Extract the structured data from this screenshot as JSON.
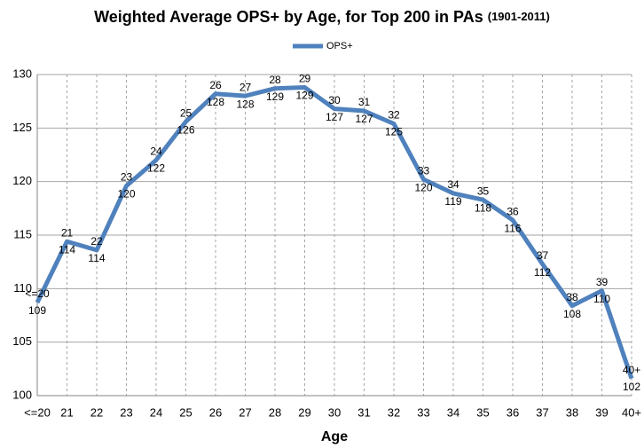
{
  "chart_data": {
    "type": "line",
    "title": "Weighted Average OPS+ by Age, for Top 200 in PAs",
    "subtitle": "(1901-2011)",
    "x_label": "Age",
    "categories": [
      "<=20",
      "21",
      "22",
      "23",
      "24",
      "25",
      "26",
      "27",
      "28",
      "29",
      "30",
      "31",
      "32",
      "33",
      "34",
      "35",
      "36",
      "37",
      "38",
      "39",
      "40+"
    ],
    "series": [
      {
        "name": "OPS+",
        "color": "#4f81bd",
        "values": [
          108.7,
          114.4,
          113.6,
          119.6,
          122.0,
          125.6,
          128.2,
          128.0,
          128.7,
          128.8,
          126.8,
          126.6,
          125.4,
          120.2,
          118.9,
          118.3,
          116.4,
          112.3,
          108.4,
          109.8,
          101.6
        ],
        "value_labels": [
          "109",
          "114",
          "114",
          "120",
          "122",
          "126",
          "128",
          "128",
          "129",
          "129",
          "127",
          "127",
          "125",
          "120",
          "119",
          "118",
          "116",
          "112",
          "108",
          "110",
          "102"
        ]
      }
    ],
    "ylim": [
      100,
      130
    ],
    "yticks": [
      100,
      105,
      110,
      115,
      120,
      125,
      130
    ],
    "grid": true,
    "legend": "top"
  }
}
